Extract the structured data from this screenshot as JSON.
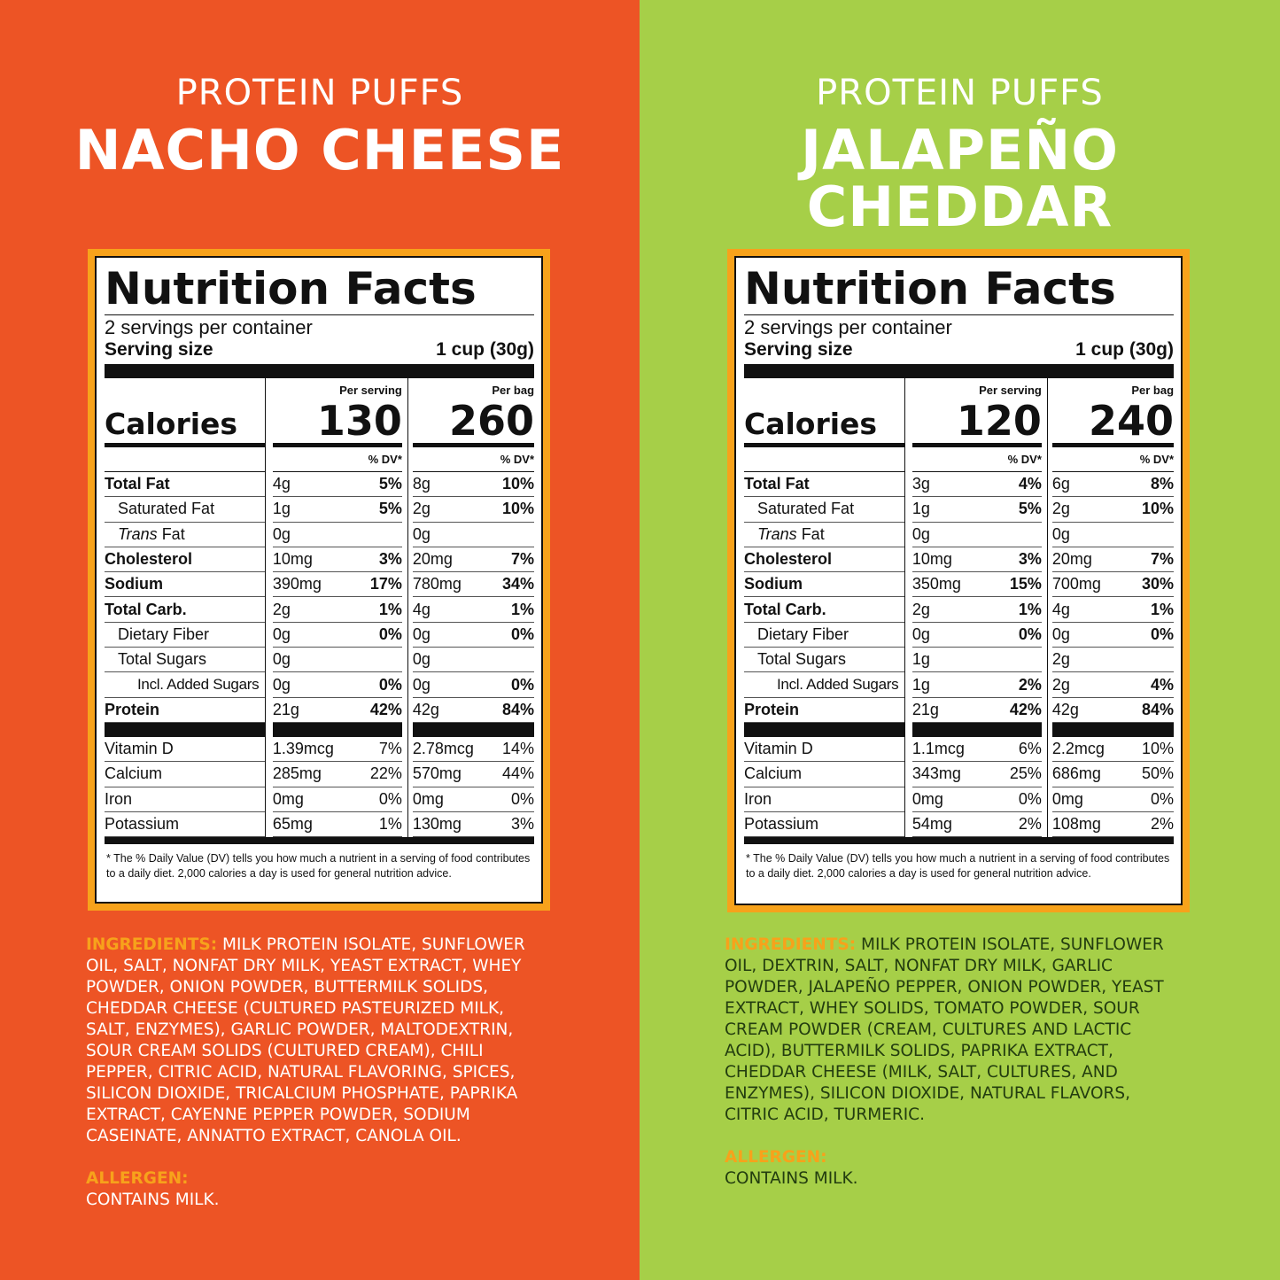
{
  "panels": [
    {
      "brand": "PROTEIN PUFFS",
      "flavor_lines": [
        "NACHO CHEESE"
      ],
      "nutrition": {
        "title": "Nutrition Facts",
        "servings": "2 servings per container",
        "serving_size_label": "Serving size",
        "serving_size_value": "1 cup (30g)",
        "per_serving_label": "Per serving",
        "per_bag_label": "Per bag",
        "calories_label": "Calories",
        "calories_serving": "130",
        "calories_bag": "260",
        "dv_label": "% DV*",
        "rows": [
          {
            "label": "Total Fat",
            "style": "bold",
            "s_amt": "4g",
            "s_dv": "5%",
            "b_amt": "8g",
            "b_dv": "10%"
          },
          {
            "label": "Saturated Fat",
            "style": "indent1",
            "s_amt": "1g",
            "s_dv": "5%",
            "b_amt": "2g",
            "b_dv": "10%"
          },
          {
            "label": "Trans Fat",
            "style": "trans",
            "s_amt": "0g",
            "s_dv": "",
            "b_amt": "0g",
            "b_dv": ""
          },
          {
            "label": "Cholesterol",
            "style": "bold",
            "s_amt": "10mg",
            "s_dv": "3%",
            "b_amt": "20mg",
            "b_dv": "7%"
          },
          {
            "label": "Sodium",
            "style": "bold",
            "s_amt": "390mg",
            "s_dv": "17%",
            "b_amt": "780mg",
            "b_dv": "34%"
          },
          {
            "label": "Total Carb.",
            "style": "bold",
            "s_amt": "2g",
            "s_dv": "1%",
            "b_amt": "4g",
            "b_dv": "1%"
          },
          {
            "label": "Dietary Fiber",
            "style": "indent1",
            "s_amt": "0g",
            "s_dv": "0%",
            "b_amt": "0g",
            "b_dv": "0%"
          },
          {
            "label": "Total Sugars",
            "style": "indent1",
            "s_amt": "0g",
            "s_dv": "",
            "b_amt": "0g",
            "b_dv": ""
          },
          {
            "label": "Incl. Added Sugars",
            "style": "indent2",
            "s_amt": "0g",
            "s_dv": "0%",
            "b_amt": "0g",
            "b_dv": "0%"
          },
          {
            "label": "Protein",
            "style": "bold",
            "s_amt": "21g",
            "s_dv": "42%",
            "b_amt": "42g",
            "b_dv": "84%"
          }
        ],
        "vitamins": [
          {
            "label": "Vitamin D",
            "s_amt": "1.39mcg",
            "s_dv": "7%",
            "b_amt": "2.78mcg",
            "b_dv": "14%"
          },
          {
            "label": "Calcium",
            "s_amt": "285mg",
            "s_dv": "22%",
            "b_amt": "570mg",
            "b_dv": "44%"
          },
          {
            "label": "Iron",
            "s_amt": "0mg",
            "s_dv": "0%",
            "b_amt": "0mg",
            "b_dv": "0%"
          },
          {
            "label": "Potassium",
            "s_amt": "65mg",
            "s_dv": "1%",
            "b_amt": "130mg",
            "b_dv": "3%"
          }
        ],
        "footnote": "* The % Daily Value (DV) tells you how much a nutrient in a serving of food contributes to a daily diet. 2,000 calories a day is used for general nutrition advice."
      },
      "ingredients_head": "INGREDIENTS:",
      "ingredients_text": "MILK PROTEIN ISOLATE, SUNFLOWER OIL, SALT, NONFAT DRY MILK, YEAST EXTRACT, WHEY POWDER, ONION POWDER, BUTTERMILK SOLIDS, CHEDDAR CHEESE (CULTURED PASTEURIZED MILK, SALT, ENZYMES), GARLIC POWDER, MALTODEXTRIN, SOUR CREAM SOLIDS (CULTURED CREAM), CHILI PEPPER, CITRIC ACID, NATURAL FLAVORING, SPICES, SILICON DIOXIDE, TRICALCIUM PHOSPHATE, PAPRIKA EXTRACT, CAYENNE PEPPER POWDER, SODIUM CASEINATE, ANNATTO EXTRACT, CANOLA OIL.",
      "allergen_head": "ALLERGEN:",
      "allergen_text": "CONTAINS MILK."
    },
    {
      "brand": "PROTEIN PUFFS",
      "flavor_lines": [
        "JALAPEÑO",
        "CHEDDAR"
      ],
      "nutrition": {
        "title": "Nutrition Facts",
        "servings": "2 servings per container",
        "serving_size_label": "Serving size",
        "serving_size_value": "1 cup (30g)",
        "per_serving_label": "Per serving",
        "per_bag_label": "Per bag",
        "calories_label": "Calories",
        "calories_serving": "120",
        "calories_bag": "240",
        "dv_label": "% DV*",
        "rows": [
          {
            "label": "Total Fat",
            "style": "bold",
            "s_amt": "3g",
            "s_dv": "4%",
            "b_amt": "6g",
            "b_dv": "8%"
          },
          {
            "label": "Saturated Fat",
            "style": "indent1",
            "s_amt": "1g",
            "s_dv": "5%",
            "b_amt": "2g",
            "b_dv": "10%"
          },
          {
            "label": "Trans Fat",
            "style": "trans",
            "s_amt": "0g",
            "s_dv": "",
            "b_amt": "0g",
            "b_dv": ""
          },
          {
            "label": "Cholesterol",
            "style": "bold",
            "s_amt": "10mg",
            "s_dv": "3%",
            "b_amt": "20mg",
            "b_dv": "7%"
          },
          {
            "label": "Sodium",
            "style": "bold",
            "s_amt": "350mg",
            "s_dv": "15%",
            "b_amt": "700mg",
            "b_dv": "30%"
          },
          {
            "label": "Total Carb.",
            "style": "bold",
            "s_amt": "2g",
            "s_dv": "1%",
            "b_amt": "4g",
            "b_dv": "1%"
          },
          {
            "label": "Dietary Fiber",
            "style": "indent1",
            "s_amt": "0g",
            "s_dv": "0%",
            "b_amt": "0g",
            "b_dv": "0%"
          },
          {
            "label": "Total Sugars",
            "style": "indent1",
            "s_amt": "1g",
            "s_dv": "",
            "b_amt": "2g",
            "b_dv": ""
          },
          {
            "label": "Incl. Added Sugars",
            "style": "indent2",
            "s_amt": "1g",
            "s_dv": "2%",
            "b_amt": "2g",
            "b_dv": "4%"
          },
          {
            "label": "Protein",
            "style": "bold",
            "s_amt": "21g",
            "s_dv": "42%",
            "b_amt": "42g",
            "b_dv": "84%"
          }
        ],
        "vitamins": [
          {
            "label": "Vitamin D",
            "s_amt": "1.1mcg",
            "s_dv": "6%",
            "b_amt": "2.2mcg",
            "b_dv": "10%"
          },
          {
            "label": "Calcium",
            "s_amt": "343mg",
            "s_dv": "25%",
            "b_amt": "686mg",
            "b_dv": "50%"
          },
          {
            "label": "Iron",
            "s_amt": "0mg",
            "s_dv": "0%",
            "b_amt": "0mg",
            "b_dv": "0%"
          },
          {
            "label": "Potassium",
            "s_amt": "54mg",
            "s_dv": "2%",
            "b_amt": "108mg",
            "b_dv": "2%"
          }
        ],
        "footnote": "* The % Daily Value (DV) tells you how much a nutrient in a serving of food contributes to a daily diet. 2,000 calories a day is used for general nutrition advice."
      },
      "ingredients_head": "INGREDIENTS:",
      "ingredients_text": "MILK PROTEIN ISOLATE, SUNFLOWER OIL, DEXTRIN, SALT, NONFAT DRY MILK, GARLIC POWDER, JALAPEÑO PEPPER, ONION POWDER, YEAST EXTRACT, WHEY SOLIDS, TOMATO POWDER, SOUR CREAM POWDER (CREAM, CULTURES AND LACTIC ACID), BUTTERMILK SOLIDS, PAPRIKA EXTRACT, CHEDDAR CHEESE (MILK, SALT, CULTURES, AND ENZYMES), SILICON DIOXIDE, NATURAL FLAVORS, CITRIC ACID, TURMERIC.",
      "allergen_head": "ALLERGEN:",
      "allergen_text": "CONTAINS MILK."
    }
  ],
  "colors": {
    "left_bg": "#ed5425",
    "right_bg": "#a6cf48",
    "frame": "#f7a21b",
    "heading_accent": "#f7a21b",
    "right_text": "#233d0f"
  }
}
